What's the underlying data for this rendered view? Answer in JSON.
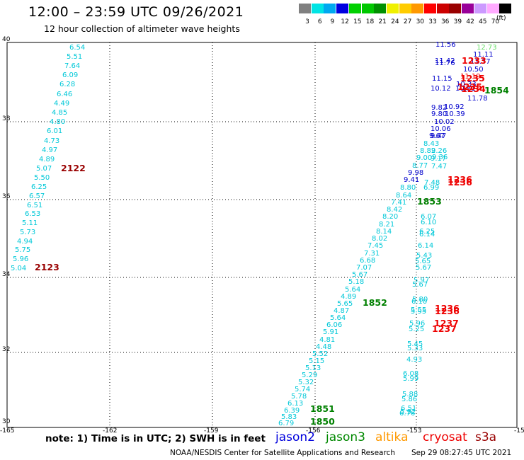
{
  "header": {
    "title": "12:00 – 23:59 UTC 09/26/2021",
    "subtitle": "12 hour collection of altimeter wave heights"
  },
  "scale": {
    "unit": "(ft)",
    "bins": [
      {
        "label": "3",
        "color": "#808080"
      },
      {
        "label": "6",
        "color": "#00e4e4"
      },
      {
        "label": "9",
        "color": "#00a8f0"
      },
      {
        "label": "12",
        "color": "#0000e0"
      },
      {
        "label": "15",
        "color": "#00d000"
      },
      {
        "label": "18",
        "color": "#00c800"
      },
      {
        "label": "21",
        "color": "#009000"
      },
      {
        "label": "24",
        "color": "#f0f000"
      },
      {
        "label": "27",
        "color": "#ffcc00"
      },
      {
        "label": "30",
        "color": "#ff9900"
      },
      {
        "label": "33",
        "color": "#ff0000"
      },
      {
        "label": "36",
        "color": "#cc0000"
      },
      {
        "label": "39",
        "color": "#990000"
      },
      {
        "label": "42",
        "color": "#990099"
      },
      {
        "label": "45",
        "color": "#cc99ff"
      },
      {
        "label": "70",
        "color": "#ffaaff"
      },
      {
        "label": "",
        "color": "#000000"
      }
    ]
  },
  "axes": {
    "lat_labels": [
      "40",
      "38",
      "36",
      "34",
      "32",
      "30"
    ],
    "lon_labels": [
      "-165",
      "-162",
      "-159",
      "-156",
      "-153",
      "-15"
    ]
  },
  "palette": {
    "cyan": "#00c8d8",
    "blue": "#0000cc",
    "darkred": "#990000",
    "green": "#008000",
    "red": "#ee0000",
    "lightgreen": "#66dd66"
  },
  "tracks": {
    "left_track": [
      {
        "v": "6.54",
        "c": "cyan"
      },
      {
        "v": "5.51",
        "c": "cyan"
      },
      {
        "v": "7.64",
        "c": "cyan"
      },
      {
        "v": "6.09",
        "c": "cyan"
      },
      {
        "v": "6.28",
        "c": "cyan"
      },
      {
        "v": "6.46",
        "c": "cyan"
      },
      {
        "v": "4.49",
        "c": "cyan"
      },
      {
        "v": "4.85",
        "c": "cyan"
      },
      {
        "v": "4.80",
        "c": "cyan"
      },
      {
        "v": "6.01",
        "c": "cyan"
      },
      {
        "v": "4.73",
        "c": "cyan"
      },
      {
        "v": "4.97",
        "c": "cyan"
      },
      {
        "v": "4.89",
        "c": "cyan"
      },
      {
        "v": "5.07",
        "c": "cyan"
      },
      {
        "v": "5.50",
        "c": "cyan"
      },
      {
        "v": "6.25",
        "c": "cyan"
      },
      {
        "v": "6.57",
        "c": "cyan"
      },
      {
        "v": "6.51",
        "c": "cyan"
      },
      {
        "v": "6.53",
        "c": "cyan"
      },
      {
        "v": "5.11",
        "c": "cyan"
      },
      {
        "v": "5.73",
        "c": "cyan"
      },
      {
        "v": "4.94",
        "c": "cyan"
      },
      {
        "v": "5.75",
        "c": "cyan"
      },
      {
        "v": "5.96",
        "c": "cyan"
      },
      {
        "v": "5.04",
        "c": "cyan"
      }
    ],
    "diag_track": [
      {
        "v": "8.43",
        "c": "cyan"
      },
      {
        "v": "8.82",
        "c": "cyan"
      },
      {
        "v": "9.00",
        "c": "cyan"
      },
      {
        "v": "8.77",
        "c": "cyan"
      },
      {
        "v": "9.98",
        "c": "blue"
      },
      {
        "v": "9.41",
        "c": "blue"
      },
      {
        "v": "8.80",
        "c": "cyan"
      },
      {
        "v": "8.64",
        "c": "cyan"
      },
      {
        "v": "7.41",
        "c": "cyan"
      },
      {
        "v": "8.42",
        "c": "cyan"
      },
      {
        "v": "8.20",
        "c": "cyan"
      },
      {
        "v": "8.21",
        "c": "cyan"
      },
      {
        "v": "8.14",
        "c": "cyan"
      },
      {
        "v": "8.02",
        "c": "cyan"
      },
      {
        "v": "7.45",
        "c": "cyan"
      },
      {
        "v": "7.31",
        "c": "cyan"
      },
      {
        "v": "6.68",
        "c": "cyan"
      },
      {
        "v": "7.07",
        "c": "cyan"
      },
      {
        "v": "5.67",
        "c": "cyan"
      },
      {
        "v": "5.18",
        "c": "cyan"
      },
      {
        "v": "5.64",
        "c": "cyan"
      },
      {
        "v": "4.89",
        "c": "cyan"
      },
      {
        "v": "5.65",
        "c": "cyan"
      },
      {
        "v": "4.87",
        "c": "cyan"
      },
      {
        "v": "5.64",
        "c": "cyan"
      },
      {
        "v": "6.06",
        "c": "cyan"
      },
      {
        "v": "5.91",
        "c": "cyan"
      },
      {
        "v": "4.81",
        "c": "cyan"
      },
      {
        "v": "4.48",
        "c": "cyan"
      },
      {
        "v": "5.52",
        "c": "cyan"
      },
      {
        "v": "5.15",
        "c": "cyan"
      },
      {
        "v": "5.13",
        "c": "cyan"
      },
      {
        "v": "5.29",
        "c": "cyan"
      },
      {
        "v": "5.32",
        "c": "cyan"
      },
      {
        "v": "5.74",
        "c": "cyan"
      },
      {
        "v": "5.78",
        "c": "cyan"
      },
      {
        "v": "6.13",
        "c": "cyan"
      },
      {
        "v": "6.39",
        "c": "cyan"
      },
      {
        "v": "5.83",
        "c": "cyan"
      },
      {
        "v": "6.79",
        "c": "cyan"
      }
    ],
    "upper_track": [
      {
        "v": "11.56",
        "c": "blue"
      },
      {
        "v": "11.11",
        "c": "blue"
      },
      {
        "v": "11.42",
        "c": "blue"
      },
      {
        "v": "11.76",
        "c": "blue"
      },
      {
        "v": "11.37",
        "c": "blue"
      },
      {
        "v": "10.50",
        "c": "blue"
      },
      {
        "v": "11.15",
        "c": "blue"
      },
      {
        "v": "11.19",
        "c": "red"
      },
      {
        "v": "10.33",
        "c": "blue"
      },
      {
        "v": "10.12",
        "c": "blue"
      },
      {
        "v": "10.81",
        "c": "blue"
      },
      {
        "v": "11.78",
        "c": "blue"
      },
      {
        "v": "9.82",
        "c": "blue"
      },
      {
        "v": "10.92",
        "c": "blue"
      },
      {
        "v": "9.80",
        "c": "blue"
      },
      {
        "v": "10.39",
        "c": "blue"
      },
      {
        "v": "10.02",
        "c": "blue"
      },
      {
        "v": "10.06",
        "c": "blue"
      },
      {
        "v": "9.67",
        "c": "blue"
      },
      {
        "v": "9.47",
        "c": "blue"
      },
      {
        "v": "9.26",
        "c": "cyan"
      },
      {
        "v": "9.36",
        "c": "cyan"
      },
      {
        "v": "9.17",
        "c": "cyan"
      },
      {
        "v": "7.47",
        "c": "cyan"
      },
      {
        "v": "7.48",
        "c": "cyan"
      },
      {
        "v": "6.99",
        "c": "cyan"
      }
    ],
    "right_track": [
      {
        "v": "6.07",
        "c": "cyan"
      },
      {
        "v": "6.10",
        "c": "cyan"
      },
      {
        "v": "6.25",
        "c": "cyan"
      },
      {
        "v": "6.14",
        "c": "cyan"
      },
      {
        "v": "6.14",
        "c": "cyan"
      },
      {
        "v": "5.43",
        "c": "cyan"
      },
      {
        "v": "5.65",
        "c": "cyan"
      },
      {
        "v": "5.67",
        "c": "cyan"
      },
      {
        "v": "5.97",
        "c": "cyan"
      },
      {
        "v": "5.67",
        "c": "cyan"
      },
      {
        "v": "5.80",
        "c": "cyan"
      },
      {
        "v": "6.10",
        "c": "cyan"
      },
      {
        "v": "5.55",
        "c": "cyan"
      },
      {
        "v": "5.95",
        "c": "cyan"
      },
      {
        "v": "5.96",
        "c": "cyan"
      },
      {
        "v": "5.25",
        "c": "cyan"
      },
      {
        "v": "5.45",
        "c": "cyan"
      },
      {
        "v": "5.33",
        "c": "cyan"
      },
      {
        "v": "4.93",
        "c": "cyan"
      },
      {
        "v": "6.08",
        "c": "cyan"
      },
      {
        "v": "5.99",
        "c": "cyan"
      },
      {
        "v": "5.88",
        "c": "cyan"
      },
      {
        "v": "5.86",
        "c": "cyan"
      },
      {
        "v": "6.51",
        "c": "cyan"
      },
      {
        "v": "5.92",
        "c": "cyan"
      },
      {
        "v": "6.76",
        "c": "cyan"
      }
    ],
    "extra": [
      {
        "v": "12.73",
        "c": "lightgreen"
      }
    ]
  },
  "time_labels": [
    {
      "t": "2122",
      "c": "darkred"
    },
    {
      "t": "2123",
      "c": "darkred"
    },
    {
      "t": "1853",
      "c": "green"
    },
    {
      "t": "1852",
      "c": "green"
    },
    {
      "t": "1851",
      "c": "green"
    },
    {
      "t": "1850",
      "c": "green"
    },
    {
      "t": "1854",
      "c": "green"
    },
    {
      "t": "1233",
      "c": "red"
    },
    {
      "t": "1235",
      "c": "red"
    },
    {
      "t": "1235",
      "c": "red"
    },
    {
      "t": "1234",
      "c": "red"
    },
    {
      "t": "1236",
      "c": "red"
    },
    {
      "t": "1236",
      "c": "red"
    },
    {
      "t": "1236",
      "c": "red"
    },
    {
      "t": "1236",
      "c": "red"
    },
    {
      "t": "1237",
      "c": "red"
    },
    {
      "t": "1237",
      "c": "red"
    }
  ],
  "footer": {
    "note": "note:  1) Time is in UTC; 2) SWH is in feet",
    "satellites": [
      {
        "name": "jason2",
        "color": "#0000dd"
      },
      {
        "name": "jason3",
        "color": "#008800"
      },
      {
        "name": "altika",
        "color": "#ff9900"
      },
      {
        "name": "cryosat",
        "color": "#ee0000"
      },
      {
        "name": "s3a",
        "color": "#990000"
      }
    ],
    "credit": "NOAA/NESDIS Center for Satellite Applications and Research",
    "timestamp": "Sep 29 08:27:45 UTC 2021"
  }
}
